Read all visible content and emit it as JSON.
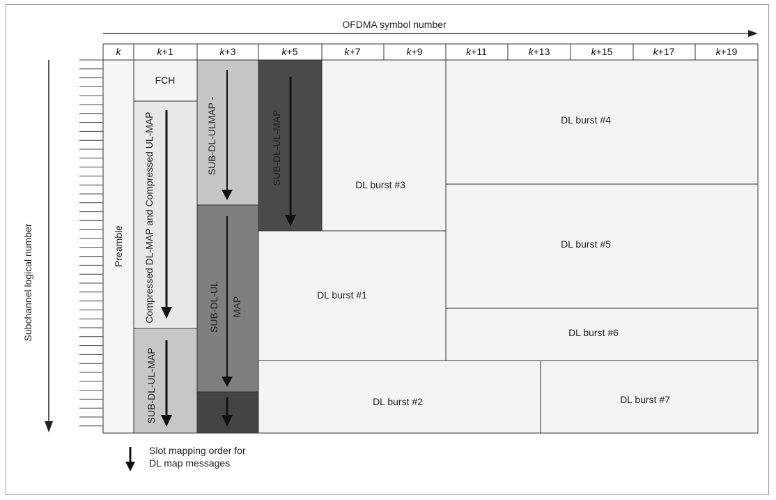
{
  "axes": {
    "x_title": "OFDMA symbol number",
    "y_title": "Subchannel logical number"
  },
  "symbols": [
    "k",
    "+1",
    "+3",
    "+5",
    "+7",
    "+9",
    "+11",
    "+13",
    "+15",
    "+17",
    "+19"
  ],
  "symbol_prefix": "k",
  "regions": {
    "preamble": "Preamble",
    "fch": "FCH",
    "compressed_map": "Compressed DL-MAP and Compressed UL-MAP",
    "sub_map_a": "SUB-DL-UL-MAP",
    "sub_map_b": "SUB-DL-ULMAP -",
    "sub_map_c_line1": "SUB-DL-UL",
    "sub_map_c_line2": "MAP",
    "sub_map_d": "SUB-DL-UL-MAP"
  },
  "bursts": {
    "b1": "DL burst #1",
    "b2": "DL burst #2",
    "b3": "DL burst #3",
    "b4": "DL burst #4",
    "b5": "DL burst #5",
    "b6": "DL burst #6",
    "b7": "DL burst #7"
  },
  "legend": {
    "line1": "Slot mapping order for",
    "line2": "DL map messages"
  },
  "colors": {
    "light": "#f4f4f4",
    "compressed": "#e7e7e7",
    "mid": "#c6c6c6",
    "dark_mid": "#7e7e7e",
    "dark": "#444444",
    "line": "#333333"
  }
}
